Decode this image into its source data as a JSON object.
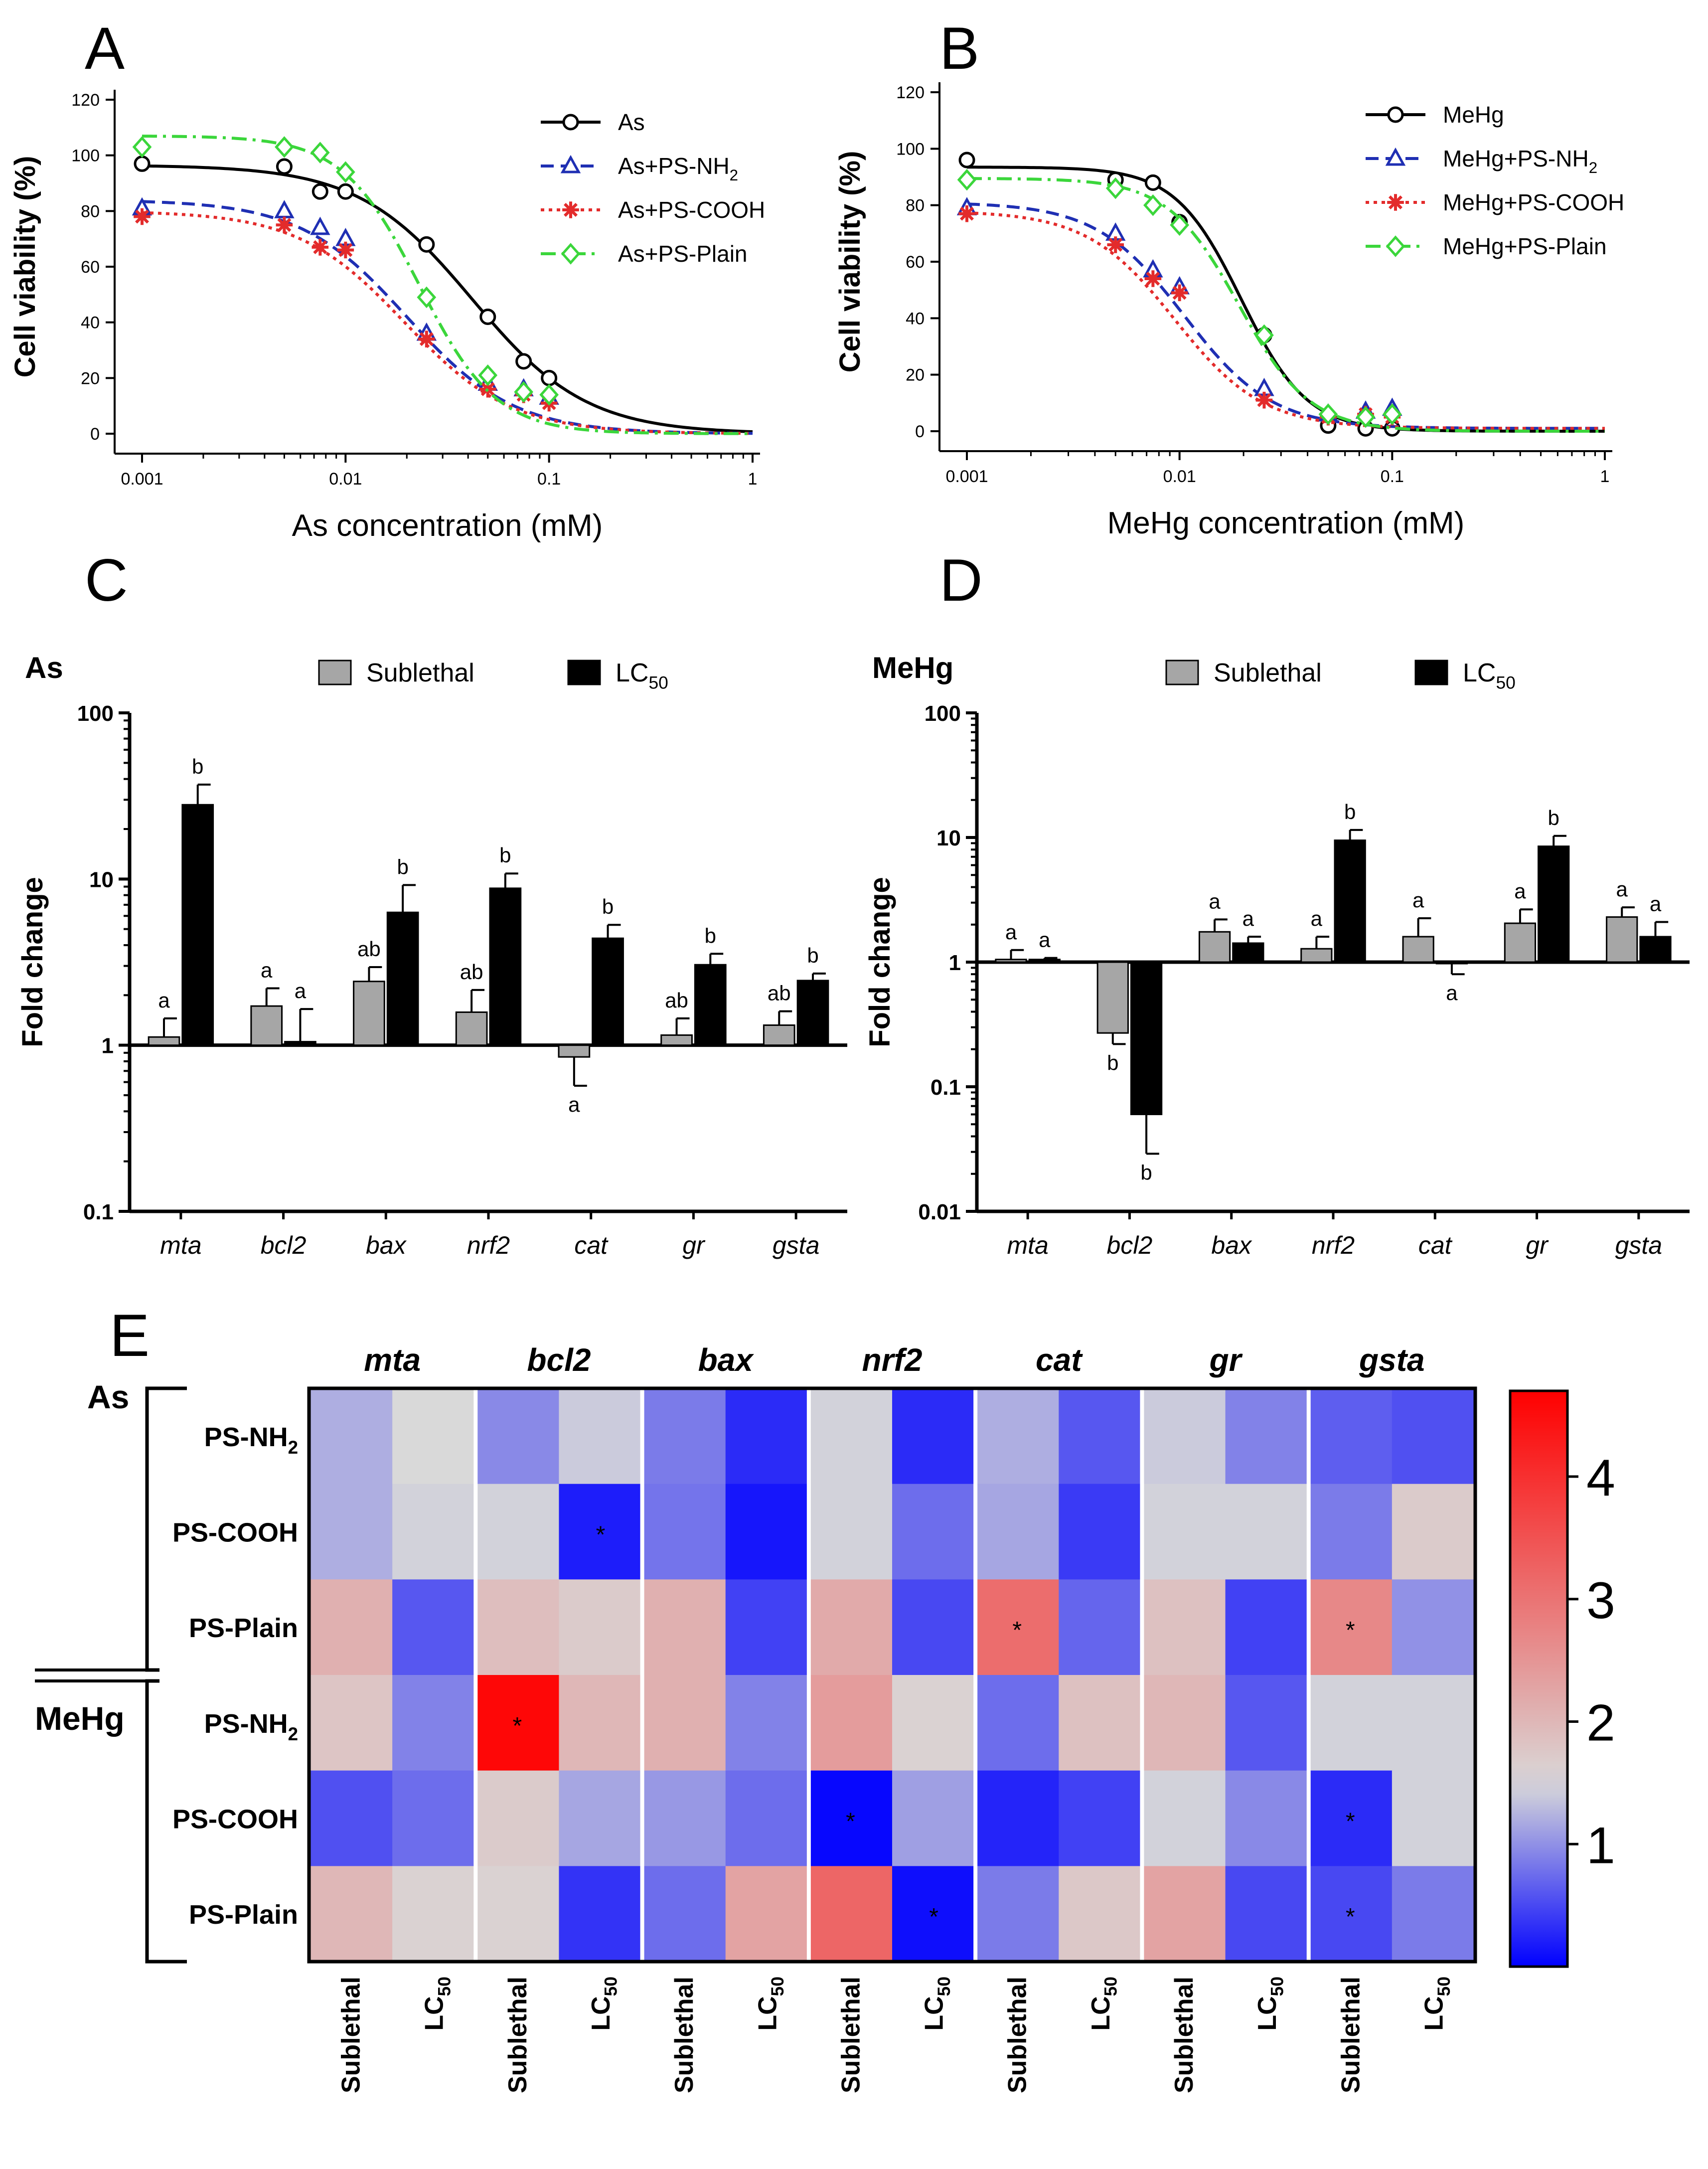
{
  "chart_data": [
    {
      "panel": "A",
      "type": "line",
      "xscale": "log",
      "xlabel": "As concentration (mM)",
      "ylabel": "Cell viability (%)",
      "xlim": [
        0.001,
        1
      ],
      "ylim": [
        0,
        120
      ],
      "xticks": [
        "0.001",
        "0.01",
        "0.1",
        "1"
      ],
      "yticks": [
        "0",
        "20",
        "40",
        "60",
        "80",
        "100",
        "120"
      ],
      "series": [
        {
          "name": "As",
          "sub": "",
          "color": "#000000",
          "dash": "solid",
          "marker": "circle",
          "x": [
            0.001,
            0.005,
            0.0075,
            0.01,
            0.025,
            0.05,
            0.075,
            0.1
          ],
          "y": [
            97,
            96,
            87,
            87,
            68,
            42,
            26,
            20
          ],
          "fit": {
            "top": 96.5,
            "bottom": 0,
            "ec50": 0.042,
            "hill": 1.55
          }
        },
        {
          "name": "As+PS-NH",
          "sub": "2",
          "color": "#1f2fb3",
          "dash": "dash",
          "marker": "triangle",
          "x": [
            0.001,
            0.005,
            0.0075,
            0.01,
            0.025,
            0.05,
            0.075,
            0.1
          ],
          "y": [
            81,
            80,
            74,
            70,
            36,
            18,
            16,
            13
          ],
          "fit": {
            "top": 84,
            "bottom": 0,
            "ec50": 0.02,
            "hill": 1.65
          }
        },
        {
          "name": "As+PS-COOH",
          "sub": "",
          "color": "#e32b2b",
          "dash": "dot",
          "marker": "asterisk",
          "x": [
            0.001,
            0.005,
            0.0075,
            0.01,
            0.025,
            0.05,
            0.075,
            0.1
          ],
          "y": [
            78,
            75,
            67,
            66,
            34,
            16,
            14,
            11
          ],
          "fit": {
            "top": 80,
            "bottom": 0,
            "ec50": 0.0195,
            "hill": 1.65
          }
        },
        {
          "name": "As+PS-Plain",
          "sub": "",
          "color": "#3bd63b",
          "dash": "dashdot",
          "marker": "diamond",
          "x": [
            0.001,
            0.005,
            0.0075,
            0.01,
            0.025,
            0.05,
            0.075,
            0.1
          ],
          "y": [
            103,
            103,
            101,
            94,
            49,
            21,
            15,
            14
          ],
          "fit": {
            "top": 107,
            "bottom": 0,
            "ec50": 0.023,
            "hill": 2.3
          }
        }
      ]
    },
    {
      "panel": "B",
      "type": "line",
      "xscale": "log",
      "xlabel": "MeHg concentration (mM)",
      "ylabel": "Cell viability (%)",
      "xlim": [
        0.001,
        1
      ],
      "ylim": [
        0,
        120
      ],
      "xticks": [
        "0.001",
        "0.01",
        "0.1",
        "1"
      ],
      "yticks": [
        "0",
        "20",
        "40",
        "60",
        "80",
        "100",
        "120"
      ],
      "series": [
        {
          "name": "MeHg",
          "sub": "",
          "color": "#000000",
          "dash": "solid",
          "marker": "circle",
          "x": [
            0.001,
            0.005,
            0.0075,
            0.01,
            0.025,
            0.05,
            0.075,
            0.1
          ],
          "y": [
            96,
            89,
            88,
            74,
            34,
            2,
            1,
            1
          ],
          "fit": {
            "top": 93.5,
            "bottom": 0,
            "ec50": 0.0195,
            "hill": 2.8
          }
        },
        {
          "name": "MeHg+PS-NH",
          "sub": "2",
          "color": "#1f2fb3",
          "dash": "dash",
          "marker": "triangle",
          "x": [
            0.001,
            0.005,
            0.0075,
            0.01,
            0.025,
            0.05,
            0.075,
            0.1
          ],
          "y": [
            79,
            70,
            57,
            51,
            15,
            6,
            7,
            8
          ],
          "fit": {
            "top": 81,
            "bottom": 1,
            "ec50": 0.0105,
            "hill": 2.1
          }
        },
        {
          "name": "MeHg+PS-COOH",
          "sub": "",
          "color": "#e32b2b",
          "dash": "dot",
          "marker": "asterisk",
          "x": [
            0.001,
            0.005,
            0.0075,
            0.01,
            0.025,
            0.05,
            0.075,
            0.1
          ],
          "y": [
            77,
            66,
            54,
            49,
            11,
            5,
            6,
            5
          ],
          "fit": {
            "top": 78,
            "bottom": 1,
            "ec50": 0.0095,
            "hill": 2.1
          }
        },
        {
          "name": "MeHg+PS-Plain",
          "sub": "",
          "color": "#3bd63b",
          "dash": "dashdot",
          "marker": "diamond",
          "x": [
            0.001,
            0.005,
            0.0075,
            0.01,
            0.025,
            0.05,
            0.075,
            0.1
          ],
          "y": [
            89,
            86,
            80,
            73,
            34,
            6,
            5,
            6
          ],
          "fit": {
            "top": 89.5,
            "bottom": 0,
            "ec50": 0.019,
            "hill": 2.6
          }
        }
      ]
    },
    {
      "panel": "C",
      "type": "bar",
      "title": "As",
      "yscale": "log",
      "ylabel": "Fold change",
      "ylim": [
        0.1,
        100
      ],
      "yticks": [
        "0.1",
        "1",
        "10",
        "100"
      ],
      "categories": [
        "mta",
        "bcl2",
        "bax",
        "nrf2",
        "cat",
        "gr",
        "gsta"
      ],
      "series": [
        {
          "name": "Sublethal",
          "color": "#a6a6a6",
          "values": [
            1.12,
            1.72,
            2.42,
            1.58,
            0.85,
            1.15,
            1.32
          ],
          "err": [
            1.45,
            2.2,
            2.95,
            2.15,
            0.57,
            1.45,
            1.6
          ],
          "letters": [
            "a",
            "a",
            "ab",
            "ab",
            "a",
            "ab",
            "ab"
          ]
        },
        {
          "name": "LC",
          "sub": "50",
          "color": "#000000",
          "values": [
            28,
            1.05,
            6.3,
            8.8,
            4.4,
            3.05,
            2.45
          ],
          "err": [
            37,
            1.65,
            9.2,
            10.8,
            5.3,
            3.55,
            2.7
          ],
          "letters": [
            "b",
            "a",
            "b",
            "b",
            "b",
            "b",
            "b"
          ]
        }
      ]
    },
    {
      "panel": "D",
      "type": "bar",
      "title": "MeHg",
      "yscale": "log",
      "ylabel": "Fold change",
      "ylim": [
        0.01,
        100
      ],
      "yticks": [
        "0.01",
        "0.1",
        "1",
        "10",
        "100"
      ],
      "categories": [
        "mta",
        "bcl2",
        "bax",
        "nrf2",
        "cat",
        "gr",
        "gsta"
      ],
      "series": [
        {
          "name": "Sublethal",
          "color": "#a6a6a6",
          "values": [
            1.05,
            0.27,
            1.75,
            1.28,
            1.6,
            2.05,
            2.3
          ],
          "err": [
            1.25,
            0.22,
            2.2,
            1.6,
            2.25,
            2.65,
            2.75
          ],
          "letters": [
            "a",
            "b",
            "a",
            "a",
            "a",
            "a",
            "a"
          ]
        },
        {
          "name": "LC",
          "sub": "50",
          "color": "#000000",
          "values": [
            1.05,
            0.06,
            1.42,
            9.5,
            1.0,
            8.5,
            1.6
          ],
          "err": [
            1.08,
            0.029,
            1.6,
            11.5,
            0.8,
            10.3,
            2.1
          ],
          "letters": [
            "a",
            "b",
            "a",
            "b",
            "a",
            "b",
            "a"
          ]
        }
      ]
    },
    {
      "panel": "E",
      "type": "heatmap",
      "genes": [
        "mta",
        "bcl2",
        "bax",
        "nrf2",
        "cat",
        "gr",
        "gsta"
      ],
      "conditions": [
        "Sublethal",
        "LC"
      ],
      "condition_sub": [
        "",
        "50"
      ],
      "groups": [
        {
          "name": "As",
          "rows": [
            {
              "label": "PS-NH",
              "sub": "2"
            },
            {
              "label": "PS-COOH",
              "sub": ""
            },
            {
              "label": "PS-Plain",
              "sub": ""
            }
          ]
        },
        {
          "name": "MeHg",
          "rows": [
            {
              "label": "PS-NH",
              "sub": "2"
            },
            {
              "label": "PS-COOH",
              "sub": ""
            },
            {
              "label": "PS-Plain",
              "sub": ""
            }
          ]
        }
      ],
      "values": [
        [
          1.2,
          1.5,
          0.95,
          1.4,
          0.85,
          0.3,
          1.45,
          0.3,
          1.2,
          0.6,
          1.4,
          0.9,
          0.65,
          0.55
        ],
        [
          1.2,
          1.45,
          1.45,
          0.2,
          0.8,
          0.15,
          1.45,
          0.75,
          1.15,
          0.4,
          1.45,
          1.45,
          0.85,
          1.7
        ],
        [
          2.1,
          0.6,
          1.9,
          1.7,
          2.1,
          0.45,
          2.2,
          0.5,
          3.1,
          0.7,
          1.85,
          0.45,
          2.7,
          1.0
        ],
        [
          1.8,
          0.9,
          4.6,
          2.0,
          2.1,
          0.9,
          2.4,
          1.6,
          0.75,
          1.85,
          2.0,
          0.6,
          1.45,
          1.45
        ],
        [
          0.55,
          0.75,
          1.7,
          1.15,
          1.05,
          0.75,
          0.05,
          1.1,
          0.25,
          0.45,
          1.45,
          0.95,
          0.3,
          1.45
        ],
        [
          2.0,
          1.6,
          1.6,
          0.35,
          0.75,
          2.3,
          3.2,
          0.1,
          0.85,
          1.75,
          2.3,
          0.5,
          0.5,
          0.85
        ]
      ],
      "stars": [
        [
          1,
          3
        ],
        [
          2,
          8
        ],
        [
          2,
          12
        ],
        [
          3,
          2
        ],
        [
          4,
          6
        ],
        [
          4,
          12
        ],
        [
          5,
          7
        ],
        [
          5,
          12
        ]
      ],
      "star_symbol": "*",
      "colorbar": {
        "min": 0,
        "max": 4.7,
        "center": 1.5,
        "ticks": [
          "1",
          "2",
          "3",
          "4"
        ],
        "low_color": "#0000ff",
        "mid_color": "#d9d9d9",
        "high_color": "#ff0000"
      }
    }
  ],
  "panel_letters": [
    "A",
    "B",
    "C",
    "D",
    "E"
  ]
}
